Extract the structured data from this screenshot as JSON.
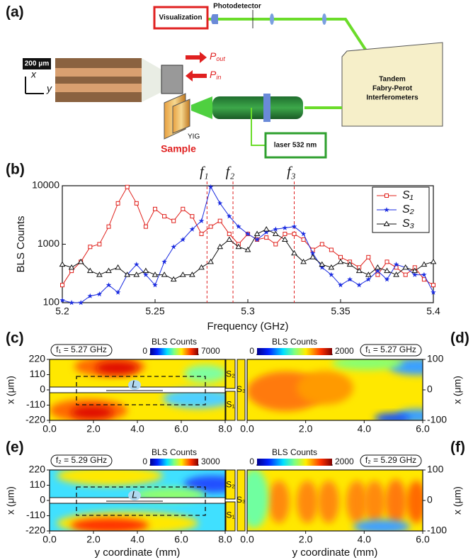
{
  "panel_labels": [
    "(a)",
    "(b)",
    "(c)",
    "(d)",
    "(e)",
    "(f)"
  ],
  "diagram": {
    "visualization": "Visualization",
    "photodetector": "Photodetector",
    "scale_bar": "200 μm",
    "axis_x": "x",
    "axis_y": "y",
    "p_out": {
      "symbol": "P",
      "sub": "out"
    },
    "p_in": {
      "symbol": "P",
      "sub": "in"
    },
    "yig": "YIG",
    "sample": "Sample",
    "interferometer": [
      "Tandem",
      "Fabry-Perot",
      "Interferometers"
    ],
    "laser": "laser 532 nm"
  },
  "chart_data": [
    {
      "type": "line",
      "xlabel": "Frequency (GHz)",
      "ylabel": "BLS Counts",
      "yscale": "log",
      "xlim": [
        5.2,
        5.4
      ],
      "xticks": [
        5.2,
        5.25,
        5.3,
        5.35,
        5.4
      ],
      "ylim": [
        100,
        10000
      ],
      "yticks": [
        100,
        1000,
        10000
      ],
      "legend": "upper right",
      "annotations": [
        {
          "text": "f₁",
          "x": 5.278
        },
        {
          "text": "f₂",
          "x": 5.292
        },
        {
          "text": "f₃",
          "x": 5.325
        }
      ],
      "x": [
        5.2,
        5.205,
        5.21,
        5.215,
        5.22,
        5.225,
        5.23,
        5.235,
        5.24,
        5.245,
        5.25,
        5.255,
        5.26,
        5.265,
        5.27,
        5.275,
        5.28,
        5.285,
        5.29,
        5.295,
        5.3,
        5.305,
        5.31,
        5.315,
        5.32,
        5.325,
        5.33,
        5.335,
        5.34,
        5.345,
        5.35,
        5.355,
        5.36,
        5.365,
        5.37,
        5.375,
        5.38,
        5.385,
        5.39,
        5.395,
        5.4
      ],
      "series": [
        {
          "name": "S₁",
          "color": "#e0201b",
          "marker": "square",
          "values": [
            200,
            350,
            500,
            900,
            1000,
            2000,
            5000,
            9500,
            5000,
            2000,
            4000,
            3000,
            2500,
            4000,
            3000,
            1500,
            2000,
            2500,
            1500,
            1000,
            1500,
            1200,
            1300,
            1000,
            1500,
            1500,
            1200,
            800,
            1000,
            800,
            600,
            500,
            400,
            600,
            300,
            500,
            400,
            300,
            400,
            250,
            200
          ]
        },
        {
          "name": "S₂",
          "color": "#1a2be0",
          "marker": "star",
          "values": [
            110,
            100,
            100,
            130,
            140,
            200,
            150,
            300,
            450,
            300,
            200,
            500,
            900,
            1200,
            1800,
            2500,
            9500,
            5000,
            3000,
            2000,
            1500,
            1200,
            1600,
            1800,
            1900,
            2000,
            1500,
            700,
            400,
            300,
            200,
            250,
            200,
            250,
            350,
            250,
            450,
            400,
            300,
            300,
            150
          ]
        },
        {
          "name": "S₃",
          "color": "#111111",
          "marker": "triangle",
          "values": [
            450,
            400,
            500,
            350,
            300,
            350,
            400,
            300,
            300,
            350,
            300,
            300,
            250,
            300,
            300,
            400,
            500,
            900,
            1200,
            900,
            800,
            1500,
            1800,
            1500,
            1200,
            700,
            500,
            600,
            450,
            400,
            500,
            450,
            350,
            300,
            400,
            350,
            300,
            400,
            350,
            450,
            500
          ]
        }
      ]
    },
    {
      "type": "heatmap",
      "annotation": "f₁ = 5.27 GHz",
      "colorbar": {
        "label": "BLS Counts",
        "ticks": [
          0,
          7000
        ]
      },
      "ylabel": "x (μm)",
      "xlim": [
        0,
        8
      ],
      "xticks": [
        {
          "value": 0,
          "label": "0.0"
        },
        {
          "value": 2,
          "label": "2.0"
        },
        {
          "value": 4,
          "label": "4.0"
        },
        {
          "value": 6,
          "label": "6.0"
        },
        {
          "value": 8,
          "label": "8.0"
        }
      ],
      "ylim": [
        -220,
        220
      ],
      "yticks": [
        -220,
        -110,
        0,
        110,
        220
      ],
      "strip_labels": [
        "S₂",
        "S₃",
        "S₁"
      ],
      "length_label": "L"
    },
    {
      "type": "heatmap",
      "annotation": "f₁ = 5.27 GHz",
      "colorbar": {
        "label": "BLS Counts",
        "ticks": [
          0,
          2000
        ]
      },
      "ylabel": "x (μm)",
      "yaxis": "right",
      "xlim": [
        0,
        6
      ],
      "xticks": [
        {
          "value": 0,
          "label": "0.0"
        },
        {
          "value": 2,
          "label": "2.0"
        },
        {
          "value": 4,
          "label": "4.0"
        },
        {
          "value": 6,
          "label": "6.0"
        }
      ],
      "ylim": [
        -100,
        100
      ],
      "yticks": [
        -100,
        0,
        100
      ]
    },
    {
      "type": "heatmap",
      "annotation": "f₂ = 5.29 GHz",
      "colorbar": {
        "label": "BLS Counts",
        "ticks": [
          0,
          3000
        ]
      },
      "ylabel": "x (μm)",
      "xlabel": "y coordinate (mm)",
      "xlim": [
        0,
        8
      ],
      "xticks": [
        {
          "value": 0,
          "label": "0.0"
        },
        {
          "value": 2,
          "label": "2.0"
        },
        {
          "value": 4,
          "label": "4.0"
        },
        {
          "value": 6,
          "label": "6.0"
        },
        {
          "value": 8,
          "label": "8.0"
        }
      ],
      "ylim": [
        -220,
        220
      ],
      "yticks": [
        -220,
        -110,
        0,
        110,
        220
      ],
      "strip_labels": [
        "S₂",
        "S₃",
        "S₁"
      ],
      "length_label": "L"
    },
    {
      "type": "heatmap",
      "annotation": "f₂ = 5.29 GHz",
      "colorbar": {
        "label": "BLS Counts",
        "ticks": [
          0,
          2000
        ]
      },
      "ylabel": "x (μm)",
      "yaxis": "right",
      "xlabel": "y coordinate (mm)",
      "xlim": [
        0,
        6
      ],
      "xticks": [
        {
          "value": 0,
          "label": "0.0"
        },
        {
          "value": 2,
          "label": "2.0"
        },
        {
          "value": 4,
          "label": "4.0"
        },
        {
          "value": 6,
          "label": "6.0"
        }
      ],
      "ylim": [
        -100,
        100
      ],
      "yticks": [
        -100,
        0,
        100
      ]
    }
  ]
}
